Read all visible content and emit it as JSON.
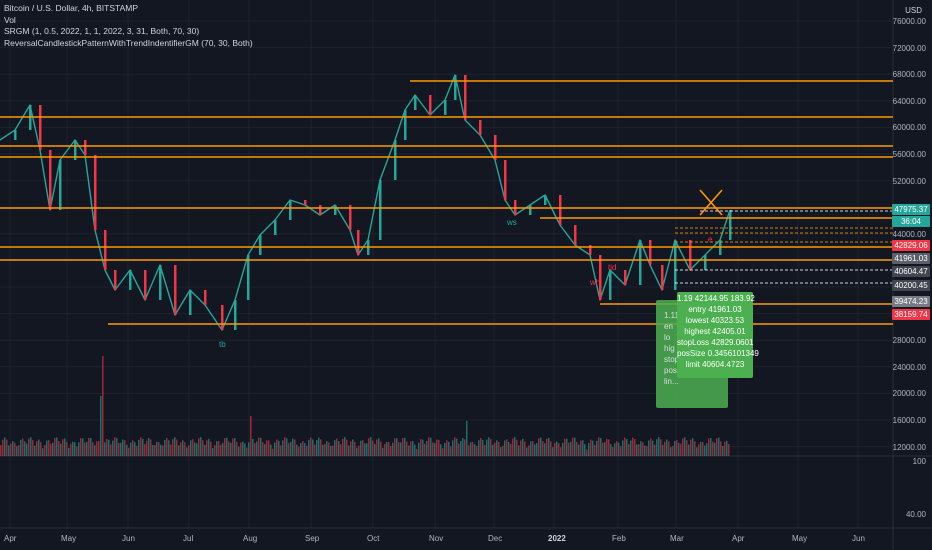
{
  "legend": {
    "title": "Bitcoin / U.S. Dollar, 4h, BITSTAMP",
    "vol": "Vol",
    "srgm": "SRGM (1, 0.5, 2022, 1, 1, 2022, 3, 31, Both, 70, 30)",
    "reversal": "ReversalCandlestickPatternWithTrendIndentifierGM (70, 30, Both)"
  },
  "currency": "USD",
  "price_axis": [
    "76000.00",
    "72000.00",
    "68000.00",
    "64000.00",
    "60000.00",
    "56000.00",
    "52000.00",
    "48000.00",
    "44000.00",
    "40000.00",
    "36000.00",
    "32000.00",
    "28000.00",
    "24000.00",
    "20000.00",
    "16000.00",
    "12000.00"
  ],
  "volume_axis": [
    "100",
    "40.00"
  ],
  "price_tags": [
    {
      "value": "47975.37",
      "color": "#26a69a"
    },
    {
      "value": "36:04",
      "color": "#26a69a"
    },
    {
      "value": "42829.06",
      "color": "#f23645"
    },
    {
      "value": "41961.03",
      "color": "#5d606b"
    },
    {
      "value": "40604.47",
      "color": "#434651"
    },
    {
      "value": "40200.45",
      "color": "#434651"
    },
    {
      "value": "39474.23",
      "color": "#787b86"
    },
    {
      "value": "38159.74",
      "color": "#f23645"
    }
  ],
  "time_axis": [
    "Apr",
    "May",
    "Jun",
    "Jul",
    "Aug",
    "Sep",
    "Oct",
    "Nov",
    "Dec",
    "2022",
    "Feb",
    "Mar",
    "Apr",
    "May",
    "Jun"
  ],
  "trade_box": {
    "lines": [
      "1.19 42144.95 183.92",
      "entry 41961.03",
      "lowest 40323.53",
      "highest 42405.01",
      "stopLoss 42829.0601",
      "posSize 0.3456101349",
      "limit 40604.4723"
    ]
  },
  "trade_box_back": {
    "lines": [
      "1.11",
      "en",
      "lo",
      "hig",
      "stop",
      "posi",
      "lin..."
    ]
  },
  "annotations": {
    "tb": "tb",
    "tid": "tid",
    "wh": "wh",
    "e": "e",
    "ws": "ws"
  },
  "colors": {
    "accent": "#ff9800",
    "up": "#26a69a",
    "down": "#f23645",
    "box": "#4caf50",
    "bg": "#131722"
  }
}
